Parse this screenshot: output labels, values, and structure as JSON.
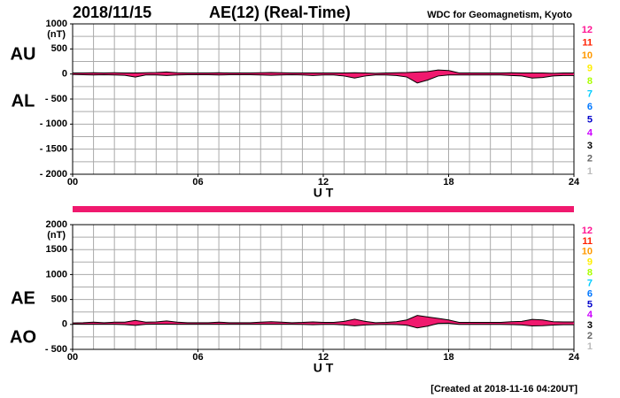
{
  "header": {
    "date": "2018/11/15",
    "title": "AE(12) (Real-Time)",
    "source": "WDC for Geomagnetism, Kyoto"
  },
  "footer": "[Created at 2018-11-16 04:20UT]",
  "chart_data": [
    {
      "type": "area-line",
      "unit": "(nT)",
      "xlabel": "U T",
      "fill": "#f0196e",
      "xlim": [
        0,
        24
      ],
      "ylim": [
        -2000,
        1000
      ],
      "xticks": [
        {
          "value": 0,
          "label": "00"
        },
        {
          "value": 6,
          "label": "06"
        },
        12,
        18,
        24
      ],
      "yticks": [
        1000,
        500,
        0,
        {
          "value": -500,
          "label": "- 500"
        },
        {
          "value": -1000,
          "label": "- 1000"
        },
        {
          "value": -1500,
          "label": "- 1500"
        },
        {
          "value": -2000,
          "label": "- 2000"
        }
      ],
      "grid": {
        "x_step": 1,
        "y_step": 250
      },
      "x": [
        0,
        0.5,
        1,
        1.5,
        2,
        2.5,
        3,
        3.5,
        4,
        4.5,
        5,
        5.5,
        6,
        6.5,
        7,
        7.5,
        8,
        8.5,
        9,
        9.5,
        10,
        10.5,
        11,
        11.5,
        12,
        12.5,
        13,
        13.5,
        14,
        14.5,
        15,
        15.5,
        16,
        16.5,
        17,
        17.5,
        18,
        18.5,
        19,
        19.5,
        20,
        20.5,
        21,
        21.5,
        22,
        22.5,
        23,
        23.5,
        24
      ],
      "series": [
        {
          "name": "AU",
          "color": "#000000",
          "values": [
            20,
            20,
            25,
            20,
            25,
            20,
            20,
            25,
            30,
            40,
            25,
            20,
            20,
            20,
            25,
            20,
            20,
            20,
            25,
            30,
            25,
            20,
            20,
            20,
            20,
            20,
            20,
            25,
            20,
            15,
            20,
            25,
            30,
            40,
            50,
            80,
            70,
            20,
            20,
            20,
            20,
            20,
            25,
            20,
            20,
            20,
            15,
            20,
            20
          ]
        },
        {
          "name": "AL",
          "color": "#000000",
          "values": [
            -10,
            -15,
            -20,
            -15,
            -20,
            -25,
            -60,
            -20,
            -20,
            -30,
            -20,
            -15,
            -15,
            -15,
            -20,
            -15,
            -15,
            -15,
            -20,
            -25,
            -20,
            -15,
            -20,
            -30,
            -20,
            -20,
            -40,
            -80,
            -40,
            -20,
            -20,
            -30,
            -60,
            -180,
            -120,
            -40,
            -20,
            -20,
            -20,
            -20,
            -20,
            -20,
            -30,
            -40,
            -80,
            -70,
            -40,
            -30,
            -30
          ]
        }
      ],
      "legend": [
        {
          "label": "12",
          "color": "#ff1493"
        },
        {
          "label": "11",
          "color": "#ff2000"
        },
        {
          "label": "10",
          "color": "#ff9900"
        },
        {
          "label": "9",
          "color": "#ffee00"
        },
        {
          "label": "8",
          "color": "#aaff00"
        },
        {
          "label": "7",
          "color": "#00ccff"
        },
        {
          "label": "6",
          "color": "#0077ff"
        },
        {
          "label": "5",
          "color": "#0000cc"
        },
        {
          "label": "4",
          "color": "#cc00ff"
        },
        {
          "label": "3",
          "color": "#000000"
        },
        {
          "label": "2",
          "color": "#666666"
        },
        {
          "label": "1",
          "color": "#bbbbbb"
        }
      ]
    },
    {
      "type": "area-line",
      "unit": "(nT)",
      "xlabel": "U T",
      "fill": "#f0196e",
      "xlim": [
        0,
        24
      ],
      "ylim": [
        -500,
        2000
      ],
      "xticks": [
        {
          "value": 0,
          "label": "00"
        },
        {
          "value": 6,
          "label": "06"
        },
        12,
        18,
        24
      ],
      "yticks": [
        2000,
        1500,
        1000,
        500,
        0,
        {
          "value": -500,
          "label": "- 500"
        }
      ],
      "grid": {
        "x_step": 1,
        "y_step": 250
      },
      "x": [
        0,
        0.5,
        1,
        1.5,
        2,
        2.5,
        3,
        3.5,
        4,
        4.5,
        5,
        5.5,
        6,
        6.5,
        7,
        7.5,
        8,
        8.5,
        9,
        9.5,
        10,
        10.5,
        11,
        11.5,
        12,
        12.5,
        13,
        13.5,
        14,
        14.5,
        15,
        15.5,
        16,
        16.5,
        17,
        17.5,
        18,
        18.5,
        19,
        19.5,
        20,
        20.5,
        21,
        21.5,
        22,
        22.5,
        23,
        23.5,
        24
      ],
      "series": [
        {
          "name": "AE",
          "color": "#000000",
          "values": [
            30,
            35,
            45,
            35,
            45,
            45,
            80,
            45,
            50,
            70,
            45,
            35,
            35,
            35,
            45,
            35,
            35,
            35,
            45,
            55,
            45,
            35,
            40,
            50,
            40,
            40,
            60,
            105,
            60,
            35,
            40,
            55,
            90,
            180,
            150,
            120,
            90,
            40,
            40,
            40,
            40,
            40,
            55,
            60,
            100,
            90,
            55,
            50,
            50
          ]
        },
        {
          "name": "AO",
          "color": "#000000",
          "values": [
            5,
            3,
            3,
            3,
            3,
            -3,
            -20,
            3,
            5,
            5,
            3,
            3,
            3,
            3,
            3,
            3,
            3,
            3,
            3,
            3,
            3,
            3,
            0,
            -5,
            0,
            0,
            -10,
            -28,
            -10,
            -3,
            0,
            -3,
            -15,
            -70,
            -35,
            20,
            25,
            0,
            0,
            0,
            0,
            0,
            -3,
            -10,
            -30,
            -25,
            -13,
            -5,
            -5
          ]
        }
      ],
      "legend": [
        {
          "label": "12",
          "color": "#ff1493"
        },
        {
          "label": "11",
          "color": "#ff2000"
        },
        {
          "label": "10",
          "color": "#ff9900"
        },
        {
          "label": "9",
          "color": "#ffee00"
        },
        {
          "label": "8",
          "color": "#aaff00"
        },
        {
          "label": "7",
          "color": "#00ccff"
        },
        {
          "label": "6",
          "color": "#0077ff"
        },
        {
          "label": "5",
          "color": "#0000cc"
        },
        {
          "label": "4",
          "color": "#cc00ff"
        },
        {
          "label": "3",
          "color": "#000000"
        },
        {
          "label": "2",
          "color": "#666666"
        },
        {
          "label": "1",
          "color": "#bbbbbb"
        }
      ]
    }
  ]
}
